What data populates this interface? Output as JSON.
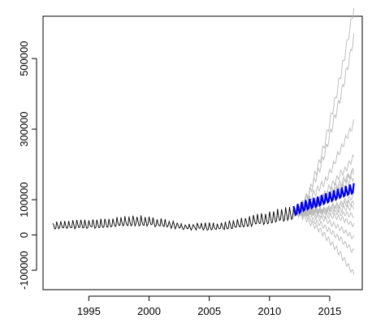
{
  "chart_data": {
    "type": "line",
    "title": "",
    "xlabel": "",
    "ylabel": "",
    "xlim": [
      1991.2,
      2017.7
    ],
    "ylim": [
      -155000,
      620000
    ],
    "x_ticks": [
      1995,
      2000,
      2005,
      2010,
      2015
    ],
    "x_tick_labels": [
      "1995",
      "2000",
      "2005",
      "2010",
      "2015"
    ],
    "y_ticks": [
      -100000,
      0,
      100000,
      300000,
      500000
    ],
    "y_tick_labels": [
      "-100000",
      "0",
      100000,
      300000,
      500000
    ],
    "grid": false,
    "legend": "none",
    "colors": {
      "observed": "#000000",
      "forecast_mean": "#0000ee",
      "simulated_paths": "#b8b8b8"
    },
    "observed": {
      "start": 1992.0,
      "frequency": 12,
      "end": 2012.0,
      "seasonal_period_months": 4,
      "level_points": [
        [
          1992.0,
          25000
        ],
        [
          1996.0,
          30000
        ],
        [
          1999.0,
          38000
        ],
        [
          2001.0,
          33000
        ],
        [
          2003.0,
          22000
        ],
        [
          2006.0,
          22000
        ],
        [
          2009.0,
          40000
        ],
        [
          2012.0,
          60000
        ]
      ],
      "seasonal_amplitude_points": [
        [
          1992.0,
          11000
        ],
        [
          1999.0,
          16000
        ],
        [
          2003.0,
          9000
        ],
        [
          2006.0,
          12000
        ],
        [
          2010.0,
          19000
        ],
        [
          2012.0,
          22000
        ]
      ]
    },
    "forecast_mean": {
      "start": 2012.0,
      "end": 2017.0,
      "level_points": [
        [
          2012.0,
          65000
        ],
        [
          2013.0,
          82000
        ],
        [
          2014.0,
          92000
        ],
        [
          2015.0,
          105000
        ],
        [
          2016.0,
          118000
        ],
        [
          2017.0,
          130000
        ]
      ],
      "seasonal_amplitude": 17000
    },
    "simulated_paths": [
      {
        "end": 620000,
        "wiggle": 22000
      },
      {
        "end": 560000,
        "wiggle": 22000
      },
      {
        "end": 320000,
        "wiggle": 18000
      },
      {
        "end": 210000,
        "wiggle": 16000
      },
      {
        "end": 190000,
        "wiggle": 16000
      },
      {
        "end": 175000,
        "wiggle": 15000
      },
      {
        "end": 160000,
        "wiggle": 15000
      },
      {
        "end": 145000,
        "wiggle": 14000
      },
      {
        "end": 130000,
        "wiggle": 14000
      },
      {
        "end": 115000,
        "wiggle": 13000
      },
      {
        "end": 100000,
        "wiggle": 13000
      },
      {
        "end": 80000,
        "wiggle": 12000
      },
      {
        "end": 55000,
        "wiggle": 12000
      },
      {
        "end": 25000,
        "wiggle": 12000
      },
      {
        "end": -10000,
        "wiggle": 12000
      },
      {
        "end": -60000,
        "wiggle": 14000
      },
      {
        "end": -115000,
        "wiggle": 14000
      }
    ]
  }
}
